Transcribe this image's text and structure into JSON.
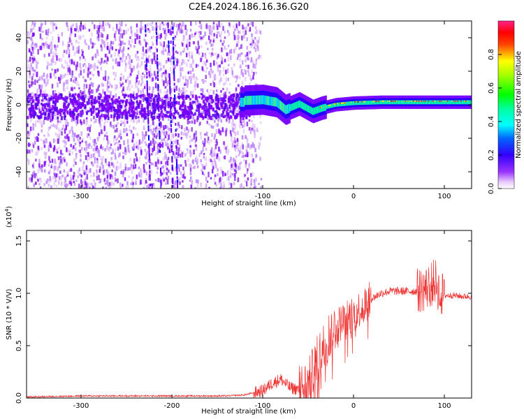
{
  "title": "C2E4.2024.186.16.36.G20",
  "chart_data": [
    {
      "type": "heatmap",
      "xlabel": "Height of straight line (km)",
      "ylabel": "Frequency (Hz)",
      "xlim": [
        -360,
        130
      ],
      "ylim": [
        -50,
        50
      ],
      "xticks": [
        -300,
        -200,
        -100,
        0,
        100
      ],
      "xtick_labels": [
        "-300",
        "-200",
        "-100",
        "0",
        "100"
      ],
      "yticks": [
        -40,
        -20,
        0,
        20,
        40
      ],
      "ytick_labels": [
        "-40",
        "-20",
        "0",
        "20",
        "40"
      ],
      "colorbar": {
        "label": "Normalized spectral amplitude",
        "range": [
          0,
          1
        ],
        "ticks": [
          0.0,
          0.2,
          0.4,
          0.6,
          0.8
        ],
        "tick_labels": [
          "0.0",
          "0.2",
          "0.4",
          "0.6",
          "0.8"
        ],
        "colormap": [
          "#ffffff",
          "#cc99ff",
          "#7f00ff",
          "#0000ff",
          "#00ffff",
          "#00ff00",
          "#ffff00",
          "#ff0000",
          "#ff1493"
        ]
      },
      "features": {
        "noise_region_x": [
          -360,
          -110
        ],
        "signal_band": [
          {
            "x": -120,
            "y": 2.5
          },
          {
            "x": -100,
            "y": 3.0
          },
          {
            "x": -85,
            "y": 1.5
          },
          {
            "x": -75,
            "y": -3.0
          },
          {
            "x": -60,
            "y": 0.5
          },
          {
            "x": -45,
            "y": -4.0
          },
          {
            "x": -35,
            "y": -2.0
          },
          {
            "x": -20,
            "y": 0.0
          },
          {
            "x": 0,
            "y": 1.0
          },
          {
            "x": 30,
            "y": 1.5
          },
          {
            "x": 60,
            "y": 1.5
          },
          {
            "x": 90,
            "y": 1.5
          },
          {
            "x": 130,
            "y": 1.5
          }
        ],
        "vertical_streaks_x": [
          -230,
          -218,
          -205,
          -200
        ]
      }
    },
    {
      "type": "line",
      "xlabel": "Height of straight line (km)",
      "ylabel": "SNR (10 * V/V)",
      "scale_note": "(x10",
      "scale_exponent": "4",
      "xlim": [
        -360,
        130
      ],
      "ylim": [
        0,
        1.6
      ],
      "xticks": [
        -300,
        -200,
        -100,
        0,
        100
      ],
      "xtick_labels": [
        "-300",
        "-200",
        "-100",
        "0",
        "100"
      ],
      "yticks": [
        0.0,
        0.5,
        1.0,
        1.5
      ],
      "ytick_labels": [
        "0.0",
        "0.5",
        "1.0",
        "1.5"
      ],
      "color": "#ee3333",
      "series": [
        {
          "x": [
            -360,
            -300,
            -200,
            -140,
            -120,
            -100,
            -90,
            -80,
            -70,
            -60,
            -50,
            -40,
            -30,
            -20,
            -10,
            0,
            10,
            20,
            30,
            40,
            50,
            60,
            70,
            80,
            85,
            90,
            95,
            100,
            110,
            120,
            130
          ],
          "y": [
            0.01,
            0.02,
            0.02,
            0.02,
            0.03,
            0.07,
            0.14,
            0.18,
            0.1,
            0.08,
            0.12,
            0.35,
            0.55,
            0.68,
            0.75,
            0.8,
            0.88,
            0.95,
            1.0,
            1.02,
            1.02,
            1.02,
            1.02,
            1.05,
            1.08,
            1.12,
            1.0,
            0.98,
            0.98,
            0.97,
            0.97
          ]
        }
      ]
    }
  ]
}
